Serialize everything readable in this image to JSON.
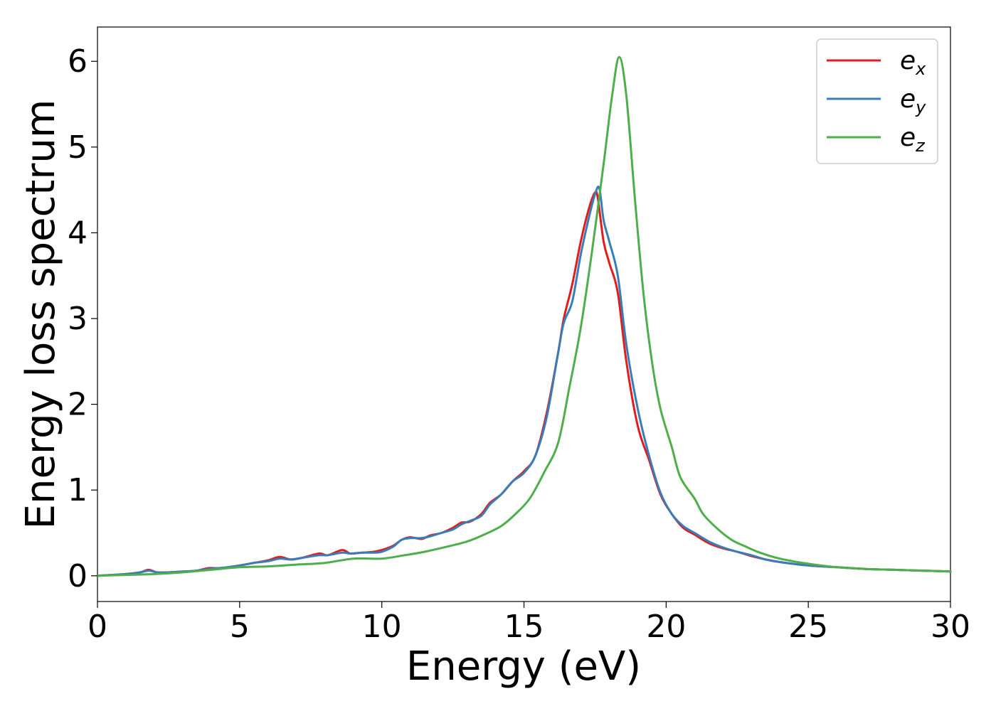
{
  "chart_data": {
    "type": "line",
    "title": "",
    "xlabel": "Energy (eV)",
    "ylabel": "Energy loss spectrum",
    "xlim": [
      0,
      30
    ],
    "ylim": [
      -0.3,
      6.4
    ],
    "xticks": [
      0,
      5,
      10,
      15,
      20,
      25,
      30
    ],
    "yticks": [
      0,
      1,
      2,
      3,
      4,
      5,
      6
    ],
    "grid": false,
    "legend_position": "top-right",
    "series": [
      {
        "name": "e_x",
        "label_base": "e",
        "label_sub": "x",
        "color": "#e41a1c",
        "x": [
          0,
          0.5,
          1,
          1.5,
          1.8,
          2.1,
          2.5,
          3,
          3.5,
          3.9,
          4.3,
          5,
          5.5,
          6,
          6.4,
          6.8,
          7.2,
          7.8,
          8.1,
          8.6,
          8.9,
          9.3,
          9.7,
          10,
          10.4,
          10.7,
          11,
          11.4,
          11.7,
          12.1,
          12.5,
          12.8,
          13.1,
          13.5,
          13.8,
          14.2,
          14.6,
          15,
          15.4,
          15.8,
          16.2,
          16.4,
          16.7,
          17,
          17.3,
          17.5,
          17.6,
          17.8,
          18,
          18.3,
          18.6,
          19,
          19.4,
          19.8,
          20.2,
          20.6,
          21,
          21.5,
          22,
          22.5,
          23,
          23.5,
          24,
          25,
          26,
          27,
          28,
          29,
          30
        ],
        "y": [
          0,
          0.01,
          0.02,
          0.04,
          0.07,
          0.04,
          0.04,
          0.05,
          0.06,
          0.09,
          0.09,
          0.12,
          0.15,
          0.18,
          0.22,
          0.19,
          0.21,
          0.26,
          0.24,
          0.3,
          0.26,
          0.27,
          0.28,
          0.3,
          0.35,
          0.42,
          0.45,
          0.43,
          0.47,
          0.5,
          0.56,
          0.62,
          0.63,
          0.72,
          0.85,
          0.95,
          1.1,
          1.22,
          1.4,
          1.9,
          2.6,
          3.0,
          3.4,
          3.9,
          4.3,
          4.47,
          4.4,
          3.9,
          3.65,
          3.3,
          2.5,
          1.75,
          1.35,
          0.95,
          0.72,
          0.56,
          0.48,
          0.38,
          0.32,
          0.28,
          0.23,
          0.19,
          0.16,
          0.12,
          0.1,
          0.08,
          0.07,
          0.06,
          0.05
        ]
      },
      {
        "name": "e_y",
        "label_base": "e",
        "label_sub": "y",
        "color": "#377eb8",
        "x": [
          0,
          0.5,
          1,
          1.5,
          1.8,
          2.1,
          2.5,
          3,
          3.5,
          3.9,
          4.3,
          5,
          5.5,
          6,
          6.4,
          6.8,
          7.2,
          7.8,
          8.1,
          8.6,
          8.9,
          9.3,
          9.7,
          10,
          10.4,
          10.7,
          11,
          11.4,
          11.7,
          12.1,
          12.5,
          12.8,
          13.1,
          13.5,
          13.8,
          14.2,
          14.6,
          15,
          15.4,
          15.8,
          16.2,
          16.4,
          16.7,
          17,
          17.3,
          17.5,
          17.65,
          17.8,
          18,
          18.3,
          18.6,
          19,
          19.4,
          19.8,
          20.2,
          20.6,
          21,
          21.5,
          22,
          22.5,
          23,
          23.5,
          24,
          25,
          26,
          27,
          28,
          29,
          30
        ],
        "y": [
          0,
          0.01,
          0.02,
          0.04,
          0.06,
          0.04,
          0.04,
          0.05,
          0.06,
          0.08,
          0.09,
          0.12,
          0.15,
          0.17,
          0.2,
          0.19,
          0.21,
          0.24,
          0.24,
          0.27,
          0.26,
          0.27,
          0.27,
          0.28,
          0.34,
          0.42,
          0.44,
          0.44,
          0.46,
          0.5,
          0.54,
          0.6,
          0.64,
          0.7,
          0.83,
          0.95,
          1.1,
          1.2,
          1.4,
          1.85,
          2.6,
          2.95,
          3.2,
          3.75,
          4.2,
          4.45,
          4.52,
          4.15,
          3.9,
          3.5,
          2.7,
          1.95,
          1.4,
          0.97,
          0.72,
          0.58,
          0.5,
          0.4,
          0.33,
          0.28,
          0.24,
          0.19,
          0.16,
          0.12,
          0.1,
          0.08,
          0.07,
          0.06,
          0.05
        ]
      },
      {
        "name": "e_z",
        "label_base": "e",
        "label_sub": "z",
        "color": "#4daf4a",
        "x": [
          0,
          1,
          2,
          3,
          4,
          5,
          6,
          7,
          8,
          9,
          10,
          10.8,
          11.5,
          12.3,
          13,
          13.6,
          14.2,
          14.7,
          15.2,
          15.7,
          16.2,
          16.6,
          17,
          17.4,
          17.8,
          18.1,
          18.35,
          18.6,
          18.9,
          19.2,
          19.5,
          19.8,
          20.2,
          20.5,
          21,
          21.3,
          21.8,
          22.3,
          22.8,
          23.3,
          24,
          25,
          26,
          27,
          28,
          29,
          30
        ],
        "y": [
          0,
          0.01,
          0.02,
          0.04,
          0.07,
          0.1,
          0.11,
          0.13,
          0.15,
          0.2,
          0.2,
          0.24,
          0.28,
          0.34,
          0.4,
          0.48,
          0.58,
          0.72,
          0.9,
          1.2,
          1.55,
          2.2,
          2.9,
          3.8,
          4.8,
          5.6,
          6.05,
          5.6,
          4.4,
          3.3,
          2.5,
          1.95,
          1.5,
          1.15,
          0.9,
          0.72,
          0.55,
          0.42,
          0.34,
          0.27,
          0.2,
          0.14,
          0.1,
          0.08,
          0.07,
          0.06,
          0.05
        ]
      }
    ]
  }
}
